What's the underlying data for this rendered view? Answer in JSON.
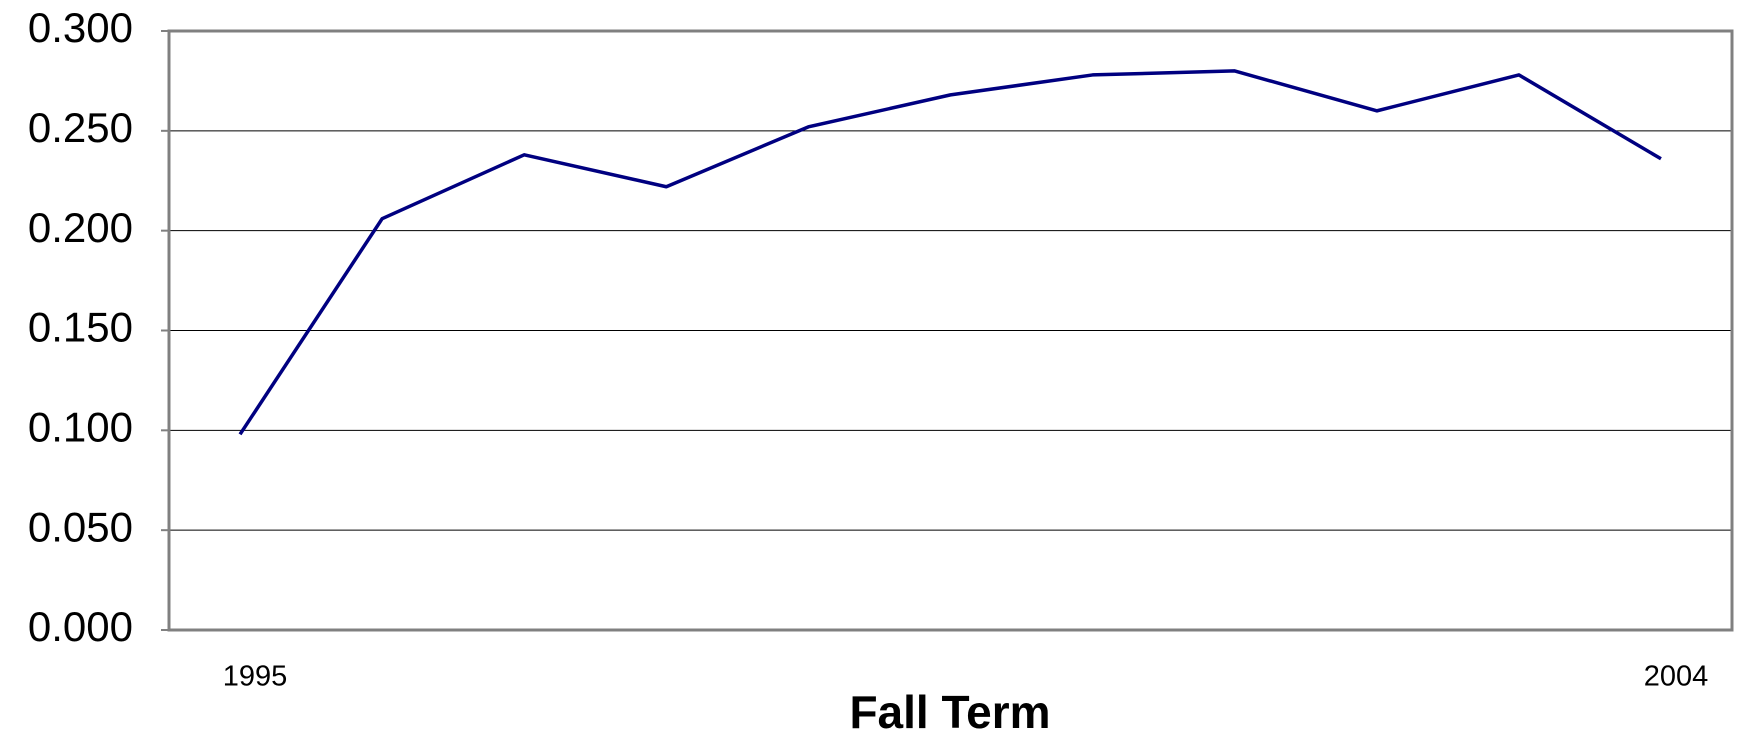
{
  "chart_data": {
    "type": "line",
    "x_label": "Fall Term",
    "categories": [
      "1995",
      null,
      null,
      null,
      null,
      null,
      null,
      null,
      null,
      null,
      "2004"
    ],
    "series": [
      {
        "color": "#000080",
        "values": [
          0.098,
          0.206,
          0.238,
          0.222,
          0.252,
          0.268,
          0.278,
          0.28,
          0.26,
          0.278,
          0.236
        ]
      }
    ],
    "ylim": [
      0,
      0.3
    ],
    "yticks": [
      {
        "value": 0,
        "label": "0.000"
      },
      {
        "value": 0.05,
        "label": "0.050"
      },
      {
        "value": 0.1,
        "label": "0.100"
      },
      {
        "value": 0.15,
        "label": "0.150"
      },
      {
        "value": 0.2,
        "label": "0.200"
      },
      {
        "value": 0.25,
        "label": "0.250"
      },
      {
        "value": 0.3,
        "label": "0.300"
      }
    ],
    "grid": true
  }
}
